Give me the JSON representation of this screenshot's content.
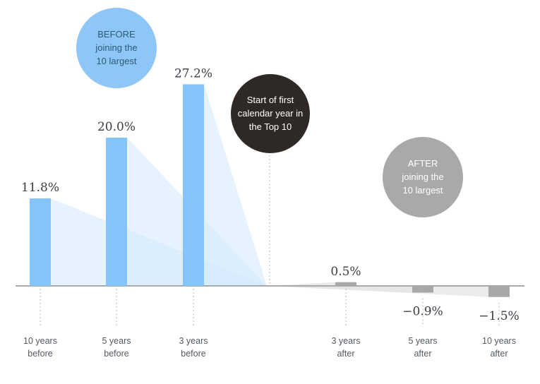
{
  "chart_data": {
    "type": "bar",
    "categories": [
      {
        "line1": "10 years",
        "line2": "before"
      },
      {
        "line1": "5 years",
        "line2": "before"
      },
      {
        "line1": "3 years",
        "line2": "before"
      },
      {
        "line1": "3 years",
        "line2": "after"
      },
      {
        "line1": "5 years",
        "line2": "after"
      },
      {
        "line1": "10 years",
        "line2": "after"
      }
    ],
    "values": [
      11.8,
      20.0,
      27.2,
      0.5,
      -0.9,
      -1.5
    ],
    "value_labels": [
      "11.8%",
      "20.0%",
      "27.2%",
      "0.5%",
      "−0.9%",
      "−1.5%"
    ],
    "ylim": [
      -2,
      30
    ],
    "grid": false,
    "colors": {
      "before_bar": "#85c4fa",
      "before_fan": "#d6eafc",
      "after_bar": "#a8a8ab",
      "after_fan": "#e4e4e6",
      "axis": "#a9a9a9"
    }
  },
  "bubbles": {
    "before": {
      "lines": [
        "BEFORE",
        "joining the",
        "10 largest"
      ],
      "color": "#8ec6f7",
      "text_color": "#2d5b73"
    },
    "start": {
      "lines": [
        "Start of first",
        "calendar year in",
        "the Top 10"
      ],
      "color": "#2e2926",
      "text_color": "#ffffff"
    },
    "after": {
      "lines": [
        "AFTER",
        "joining the",
        "10 largest"
      ],
      "color": "#a9a8ab",
      "text_color": "#ffffff"
    }
  }
}
